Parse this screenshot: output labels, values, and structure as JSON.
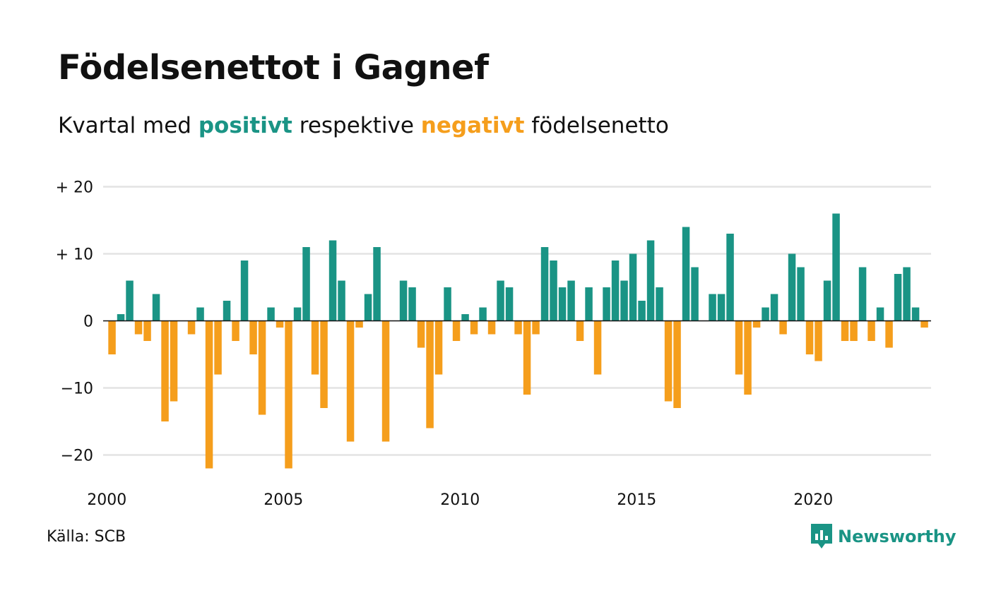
{
  "header": {
    "title": "Födelsenettot i Gagnef",
    "subtitle_pre": "Kvartal med",
    "subtitle_pos": "positivt",
    "subtitle_mid": "respektive",
    "subtitle_neg": "negativt",
    "subtitle_post": "födelsenetto"
  },
  "footer": {
    "source": "Källa: SCB",
    "brand": "Newsworthy"
  },
  "colors": {
    "positive": "#1a9485",
    "negative": "#f59e1c",
    "grid": "#e3e3e3",
    "zero_line": "#111111"
  },
  "chart_data": {
    "type": "bar",
    "title": "Födelsenettot i Gagnef",
    "ylim": [
      -24,
      20
    ],
    "yticks": [
      {
        "value": 20,
        "label": "+ 20"
      },
      {
        "value": 10,
        "label": "+ 10"
      },
      {
        "value": 0,
        "label": "0"
      },
      {
        "value": -10,
        "label": "−10"
      },
      {
        "value": -20,
        "label": "−20"
      }
    ],
    "xticks": [
      {
        "year": 2000,
        "label": "2000"
      },
      {
        "year": 2005,
        "label": "2005"
      },
      {
        "year": 2010,
        "label": "2010"
      },
      {
        "year": 2015,
        "label": "2015"
      },
      {
        "year": 2020,
        "label": "2020"
      }
    ],
    "start_year": 2000,
    "grid": true,
    "values": [
      -5,
      1,
      6,
      -2,
      -3,
      4,
      -15,
      -12,
      0,
      -2,
      2,
      -22,
      -8,
      3,
      -3,
      9,
      -5,
      -14,
      2,
      -1,
      -22,
      2,
      11,
      -8,
      -13,
      12,
      6,
      -18,
      -1,
      4,
      11,
      -18,
      0,
      6,
      5,
      -4,
      -16,
      -8,
      5,
      -3,
      1,
      -2,
      2,
      -2,
      6,
      5,
      -2,
      -11,
      -2,
      11,
      9,
      5,
      6,
      -3,
      5,
      -8,
      5,
      9,
      6,
      10,
      3,
      12,
      5,
      -12,
      -13,
      14,
      8,
      0,
      4,
      4,
      13,
      -8,
      -11,
      -1,
      2,
      4,
      -2,
      10,
      8,
      -5,
      -6,
      6,
      16,
      -3,
      -3,
      8,
      -3,
      2,
      -4,
      7,
      8,
      2,
      -1
    ]
  }
}
